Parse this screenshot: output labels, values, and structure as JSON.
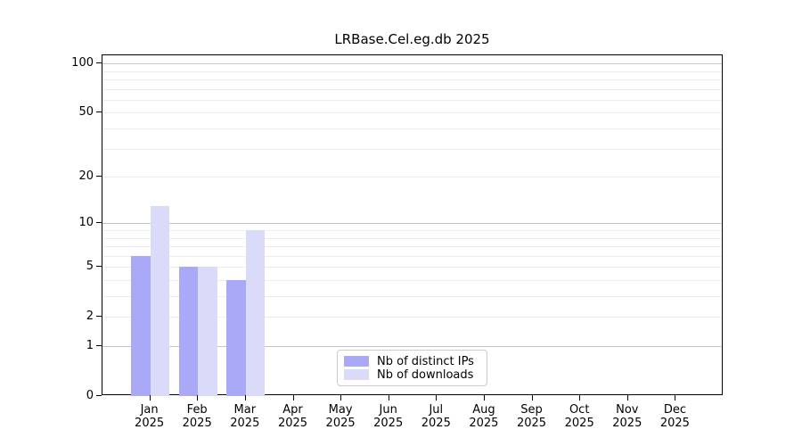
{
  "chart_data": {
    "type": "bar",
    "title": "LRBase.Cel.eg.db 2025",
    "scale": "log1p",
    "xlabel": "",
    "ylabel": "",
    "categories": [
      "Jan 2025",
      "Feb 2025",
      "Mar 2025",
      "Apr 2025",
      "May 2025",
      "Jun 2025",
      "Jul 2025",
      "Aug 2025",
      "Sep 2025",
      "Oct 2025",
      "Nov 2025",
      "Dec 2025"
    ],
    "series": [
      {
        "name": "Nb of distinct IPs",
        "color": "#a9a9f8",
        "values": [
          6,
          5,
          4,
          0,
          0,
          0,
          0,
          0,
          0,
          0,
          0,
          0
        ]
      },
      {
        "name": "Nb of downloads",
        "color": "#dadaf9",
        "values": [
          13,
          5,
          9,
          0,
          0,
          0,
          0,
          0,
          0,
          0,
          0,
          0
        ]
      }
    ],
    "ylim": [
      0,
      112
    ],
    "yticks": [
      "0",
      "1",
      "2",
      "5",
      "10",
      "20",
      "50",
      "100"
    ],
    "grid": {
      "major": [
        1,
        10,
        100
      ],
      "minor": [
        2,
        3,
        4,
        5,
        6,
        7,
        8,
        9,
        20,
        30,
        40,
        50,
        60,
        70,
        80,
        90
      ]
    },
    "legend_position": "lower center",
    "grid_on": true
  }
}
